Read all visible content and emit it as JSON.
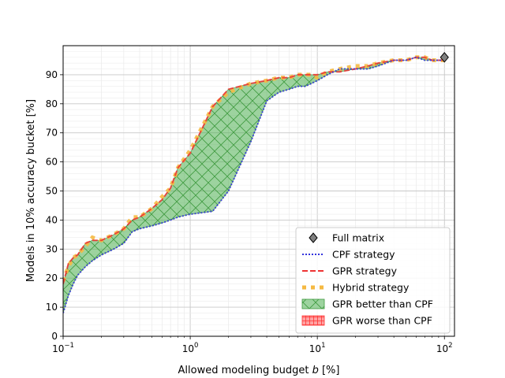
{
  "chart_data": {
    "type": "line",
    "xlabel": "Allowed modeling budget b [%]",
    "ylabel": "Models in 10% accuracy bucket [%]",
    "xscale": "log",
    "xlim": [
      0.1,
      120
    ],
    "ylim": [
      0,
      100
    ],
    "x_ticks": [
      {
        "value": 0.1,
        "base": "10",
        "exp": "−1"
      },
      {
        "value": 1,
        "base": "10",
        "exp": "0"
      },
      {
        "value": 10,
        "base": "10",
        "exp": "1"
      },
      {
        "value": 100,
        "base": "10",
        "exp": "2"
      }
    ],
    "y_ticks": [
      "0",
      "10",
      "20",
      "30",
      "40",
      "50",
      "60",
      "70",
      "80",
      "90"
    ],
    "grid": "both (major and minor)",
    "legend_position": "lower-right",
    "legend": [
      {
        "label": "Full matrix",
        "marker": "diamond",
        "color": "#808080"
      },
      {
        "label": "CPF strategy",
        "style": "dotted",
        "color": "#3333dd"
      },
      {
        "label": "GPR strategy",
        "style": "dashed",
        "color": "#ee3333"
      },
      {
        "label": "Hybrid strategy",
        "style": "square-dotted",
        "color": "#f5b942"
      },
      {
        "label": "GPR better than CPF",
        "style": "fill-green-hatch",
        "color": "#4caf50"
      },
      {
        "label": "GPR worse than CPF",
        "style": "fill-red-hatch",
        "color": "#ff3333"
      }
    ],
    "full_matrix": {
      "x": 100,
      "y": 96
    },
    "series": [
      {
        "name": "CPF strategy",
        "x": [
          0.1,
          0.11,
          0.12,
          0.13,
          0.15,
          0.17,
          0.2,
          0.25,
          0.3,
          0.35,
          0.4,
          0.5,
          0.6,
          0.7,
          0.8,
          1,
          1.5,
          2,
          3,
          4,
          5,
          6,
          7,
          8,
          9,
          10,
          12,
          15,
          20,
          25,
          30,
          40,
          50,
          60,
          70,
          80,
          90,
          100
        ],
        "y": [
          8,
          14,
          18,
          21,
          24,
          26,
          28,
          30,
          32,
          36,
          37,
          38,
          39,
          40,
          41,
          42,
          43,
          50,
          67,
          81,
          84,
          85,
          86,
          86,
          87,
          88,
          90,
          92,
          92,
          92,
          93,
          95,
          95,
          96,
          95,
          95,
          95,
          95
        ]
      },
      {
        "name": "GPR strategy",
        "x": [
          0.1,
          0.11,
          0.12,
          0.13,
          0.15,
          0.17,
          0.2,
          0.25,
          0.3,
          0.35,
          0.4,
          0.5,
          0.6,
          0.7,
          0.8,
          1,
          1.5,
          2,
          3,
          4,
          5,
          6,
          7,
          8,
          9,
          10,
          12,
          15,
          20,
          25,
          30,
          40,
          50,
          60,
          70,
          80,
          90,
          100
        ],
        "y": [
          18,
          25,
          27,
          28,
          32,
          33,
          33,
          35,
          37,
          40,
          41,
          44,
          47,
          51,
          58,
          63,
          79,
          85,
          87,
          88,
          89,
          89,
          90,
          90,
          90,
          90,
          91,
          91,
          92,
          93,
          94,
          95,
          95,
          96,
          96,
          95,
          95,
          95
        ]
      },
      {
        "name": "Hybrid strategy",
        "x": [
          0.1,
          0.11,
          0.12,
          0.13,
          0.15,
          0.17,
          0.2,
          0.25,
          0.3,
          0.35,
          0.4,
          0.5,
          0.6,
          0.7,
          0.8,
          1,
          1.5,
          2,
          3,
          4,
          5,
          6,
          7,
          8,
          9,
          10,
          12,
          15,
          20,
          25,
          30,
          40,
          50,
          60,
          70,
          80,
          90,
          100
        ],
        "y": [
          19,
          24,
          27,
          28,
          31,
          34,
          33,
          35,
          37,
          41,
          41,
          44,
          48,
          51,
          58,
          64,
          79,
          84,
          87,
          88,
          89,
          89,
          90,
          90,
          90,
          89,
          91,
          92,
          93,
          93,
          94,
          95,
          95,
          96,
          96,
          95,
          95,
          95
        ]
      }
    ]
  }
}
